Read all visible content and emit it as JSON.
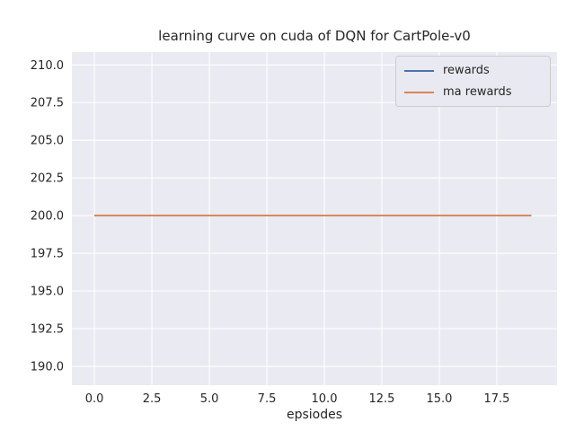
{
  "chart_data": {
    "type": "line",
    "title": "learning curve on cuda of DQN for CartPole-v0",
    "xlabel": "epsiodes",
    "ylabel": "",
    "x": [
      0,
      1,
      2,
      3,
      4,
      5,
      6,
      7,
      8,
      9,
      10,
      11,
      12,
      13,
      14,
      15,
      16,
      17,
      18,
      19
    ],
    "series": [
      {
        "name": "rewards",
        "color": "#4C72B0",
        "values": [
          200,
          200,
          200,
          200,
          200,
          200,
          200,
          200,
          200,
          200,
          200,
          200,
          200,
          200,
          200,
          200,
          200,
          200,
          200,
          200
        ]
      },
      {
        "name": "ma rewards",
        "color": "#DD8452",
        "values": [
          200,
          200,
          200,
          200,
          200,
          200,
          200,
          200,
          200,
          200,
          200,
          200,
          200,
          200,
          200,
          200,
          200,
          200,
          200,
          200
        ]
      }
    ],
    "xticks": [
      "0.0",
      "2.5",
      "5.0",
      "7.5",
      "10.0",
      "12.5",
      "15.0",
      "17.5"
    ],
    "yticks": [
      "190.0",
      "192.5",
      "195.0",
      "197.5",
      "200.0",
      "202.5",
      "205.0",
      "207.5",
      "210.0"
    ],
    "xlim": [
      -0.98,
      20.12
    ],
    "ylim": [
      188.75,
      210.85
    ],
    "grid": true,
    "legend_position": "upper right",
    "colors": {
      "plot_bg": "#EAEAF2",
      "grid": "#FFFFFF",
      "text": "#262626"
    }
  }
}
